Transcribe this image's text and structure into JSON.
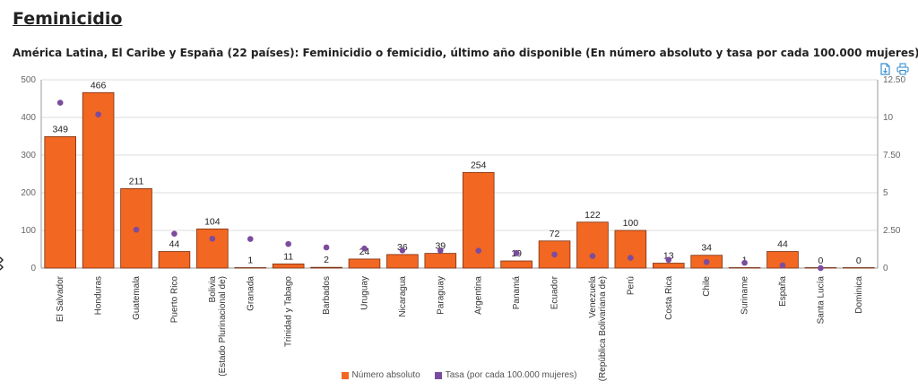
{
  "page": {
    "title": "Feminicidio",
    "chart_title": "América Latina, El Caribe y España (22 países): Feminicidio o femicidio, último año disponible (En número absoluto y tasa por cada 100.000 mujeres)"
  },
  "toolbar": {
    "export_icon": "document-export-icon",
    "print_icon": "printer-icon"
  },
  "colors": {
    "bar": "#F26722",
    "bar_stroke": "#7a3010",
    "dot": "#7B4C9E",
    "grid": "#dddddd",
    "axis_text": "#666666"
  },
  "chart_data": {
    "type": "bar",
    "title": "América Latina, El Caribe y España (22 países): Feminicidio o femicidio, último año disponible (En número absoluto y tasa por cada 100.000 mujeres)",
    "categories": [
      "El Salvador",
      "Honduras",
      "Guatemala",
      "Puerto Rico",
      "Bolivia (Estado Plurinacional de)",
      "Granada",
      "Trinidad y Tabago",
      "Barbados",
      "Uruguay",
      "Nicaragua",
      "Paraguay",
      "Argentina",
      "Panamá",
      "Ecuador",
      "Venezuela (República Bolivariana de)",
      "Perú",
      "Costa Rica",
      "Chile",
      "Suriname",
      "España",
      "Santa Lucía",
      "Dominica"
    ],
    "series": [
      {
        "name": "Número absoluto",
        "type": "bar",
        "axis": "left",
        "values": [
          349,
          466,
          211,
          44,
          104,
          1,
          11,
          2,
          24,
          36,
          39,
          254,
          19,
          72,
          122,
          100,
          13,
          34,
          1,
          44,
          0,
          0
        ]
      },
      {
        "name": "Tasa (por cada 100.000 mujeres)",
        "type": "scatter",
        "axis": "right",
        "values": [
          10.98,
          10.2,
          2.55,
          2.28,
          1.95,
          1.93,
          1.6,
          1.37,
          1.3,
          1.17,
          1.16,
          1.15,
          1.0,
          0.9,
          0.8,
          0.68,
          0.55,
          0.4,
          0.35,
          0.18,
          0.0,
          null
        ]
      }
    ],
    "ylim_left": [
      0,
      500
    ],
    "yticks_left": [
      "0",
      "100",
      "200",
      "300",
      "400",
      "500"
    ],
    "ylim_right": [
      0,
      12.5
    ],
    "yticks_right": [
      "0",
      "2.50",
      "5",
      "7.50",
      "10",
      "12.50"
    ],
    "grid": true,
    "legend_position": "bottom"
  }
}
